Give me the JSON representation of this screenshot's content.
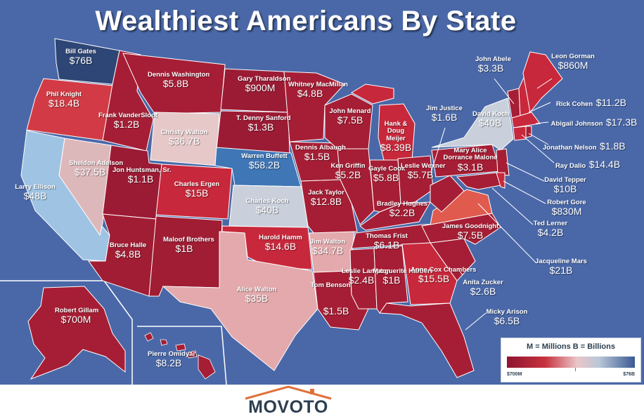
{
  "title": "Wealthiest Americans By State",
  "logo": "MOVOTO",
  "legend": {
    "units": "M = Millions     B = Billions",
    "min_label": "$700M",
    "max_label": "$76B"
  },
  "colors": {
    "ocean": "#4a68a8",
    "dark_red": "#9b1b35",
    "red": "#c22b3a",
    "pale_red": "#ddaeb0",
    "light_blue": "#c9d0dc",
    "mid_blue": "#3f76b5",
    "dark_blue": "#2e4675",
    "leader": "#ffffff"
  },
  "states": [
    {
      "id": "wa",
      "name": "Bill Gates",
      "value": "$76B"
    },
    {
      "id": "or",
      "name": "Phil Knight",
      "value": "$18.4B"
    },
    {
      "id": "ca",
      "name": "Larry Ellison",
      "value": "$48B"
    },
    {
      "id": "id",
      "name": "Frank VanderSloot",
      "value": "$1.2B"
    },
    {
      "id": "mt",
      "name": "Dennis Washington",
      "value": "$5.8B"
    },
    {
      "id": "nv",
      "name": "Sheldon Adelson",
      "value": "$37.5B"
    },
    {
      "id": "wy",
      "name": "Christy Walton",
      "value": "$36.7B"
    },
    {
      "id": "ut",
      "name": "Jon Huntsman, Sr.",
      "value": "$1.1B"
    },
    {
      "id": "co",
      "name": "Charles Ergen",
      "value": "$15B"
    },
    {
      "id": "az",
      "name": "Bruce Halle",
      "value": "$4.8B"
    },
    {
      "id": "nm",
      "name": "Maloof Brothers",
      "value": "$1B"
    },
    {
      "id": "nd",
      "name": "Gary Tharaldson",
      "value": "$900M"
    },
    {
      "id": "sd",
      "name": "T. Denny Sanford",
      "value": "$1.3B"
    },
    {
      "id": "ne",
      "name": "Warren Buffett",
      "value": "$58.2B"
    },
    {
      "id": "ks",
      "name": "Charles Koch",
      "value": "$40B"
    },
    {
      "id": "ok",
      "name": "Harold Hamm",
      "value": "$14.6B"
    },
    {
      "id": "tx",
      "name": "Alice Walton",
      "value": "$35B"
    },
    {
      "id": "mn",
      "name": "Whitney MacMillan",
      "value": "$4.8B"
    },
    {
      "id": "ia",
      "name": "Dennis Albaugh",
      "value": "$1.5B"
    },
    {
      "id": "mo",
      "name": "Jack Taylor",
      "value": "$12.8B"
    },
    {
      "id": "ar",
      "name": "Jim Walton",
      "value": "$34.7B"
    },
    {
      "id": "la",
      "name": "Tom Benson",
      "value": "$1.5B"
    },
    {
      "id": "wi",
      "name": "John Menard",
      "value": "$7.5B"
    },
    {
      "id": "il",
      "name": "Ken Griffin",
      "value": "$5.2B"
    },
    {
      "id": "mi",
      "name": "Hank & Doug Meijer",
      "value": "$8.39B"
    },
    {
      "id": "in",
      "name": "Gayle Cook",
      "value": "$5.8B"
    },
    {
      "id": "oh",
      "name": "Leslie Wexner",
      "value": "$5.7B"
    },
    {
      "id": "ky",
      "name": "Bradley Hughes",
      "value": "$2.2B"
    },
    {
      "id": "tn",
      "name": "Thomas Frist",
      "value": "$6.1B"
    },
    {
      "id": "ms",
      "name": "Leslie Lampton",
      "value": "$2.4B"
    },
    {
      "id": "al",
      "name": "Marguerite Harbert",
      "value": "$1B"
    },
    {
      "id": "ga",
      "name": "Anne Cox Chambers",
      "value": "$15.5B"
    },
    {
      "id": "wv",
      "name": "Jim Justice",
      "value": "$1.6B"
    },
    {
      "id": "pa",
      "name": "Mary Alice Dorrance Malone",
      "value": "$3.1B"
    },
    {
      "id": "ny",
      "name": "David Koch",
      "value": "$40B"
    },
    {
      "id": "vt",
      "name": "John Abele",
      "value": "$3.3B"
    },
    {
      "id": "me",
      "name": "Leon Gorman",
      "value": "$860M"
    },
    {
      "id": "nh",
      "name": "Rick Cohen",
      "value": "$11.2B"
    },
    {
      "id": "ma",
      "name": "Abigail Johnson",
      "value": "$17.3B"
    },
    {
      "id": "ri",
      "name": "Jonathan Nelson",
      "value": "$1.8B"
    },
    {
      "id": "ct",
      "name": "Ray Dalio",
      "value": "$14.4B"
    },
    {
      "id": "nj",
      "name": "David Tepper",
      "value": "$10B"
    },
    {
      "id": "de",
      "name": "Robert Gore",
      "value": "$830M"
    },
    {
      "id": "md",
      "name": "Ted Lerner",
      "value": "$4.2B"
    },
    {
      "id": "va",
      "name": "Jacqueline Mars",
      "value": "$21B"
    },
    {
      "id": "nc",
      "name": "James Goodnight",
      "value": "$7.5B"
    },
    {
      "id": "sc",
      "name": "Anita Zucker",
      "value": "$2.6B"
    },
    {
      "id": "fl",
      "name": "Micky Arison",
      "value": "$6.5B"
    },
    {
      "id": "ak",
      "name": "Robert Gillam",
      "value": "$700M"
    },
    {
      "id": "hi",
      "name": "Pierre Omidyar",
      "value": "$8.2B"
    }
  ]
}
